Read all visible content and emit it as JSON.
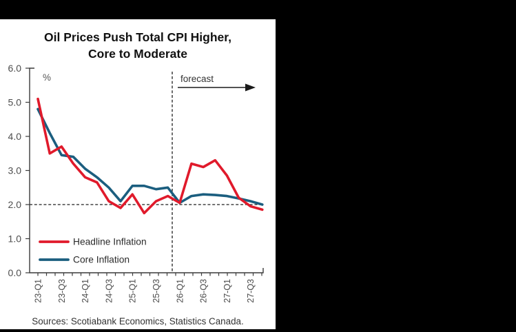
{
  "window": {
    "background_color": "#000000",
    "panel_color": "#ffffff"
  },
  "chart": {
    "title_line1": "Oil Prices Push Total CPI Higher,",
    "title_line2": "Core to Moderate",
    "unit_label": "%",
    "forecast_label": "forecast",
    "source": "Sources: Scotiabank Economics, Statistics Canada.",
    "legend": [
      {
        "label": "Headline Inflation",
        "color": "#e01a2b"
      },
      {
        "label": "Core Inflation",
        "color": "#1b5e7f"
      }
    ]
  },
  "chart_data": {
    "type": "line",
    "title": "Oil Prices Push Total CPI Higher, Core to Moderate",
    "ylabel": "%",
    "ylim": [
      0.0,
      6.0
    ],
    "ytick_labels": [
      "0.0",
      "1.0",
      "2.0",
      "3.0",
      "4.0",
      "5.0",
      "6.0"
    ],
    "x": [
      "23-Q1",
      "23-Q2",
      "23-Q3",
      "23-Q4",
      "24-Q1",
      "24-Q2",
      "24-Q3",
      "24-Q4",
      "25-Q1",
      "25-Q2",
      "25-Q3",
      "25-Q4",
      "26-Q1",
      "26-Q2",
      "26-Q3",
      "26-Q4",
      "27-Q1",
      "27-Q2",
      "27-Q3",
      "27-Q4"
    ],
    "x_tick_labels": [
      "23-Q1",
      "23-Q3",
      "24-Q1",
      "24-Q3",
      "25-Q1",
      "25-Q3",
      "26-Q1",
      "26-Q3",
      "27-Q1",
      "27-Q3"
    ],
    "series": [
      {
        "name": "Core Inflation",
        "color": "#1b5e7f",
        "values": [
          4.8,
          4.1,
          3.45,
          3.4,
          3.05,
          2.8,
          2.5,
          2.1,
          2.55,
          2.55,
          2.45,
          2.5,
          2.05,
          2.25,
          2.3,
          2.28,
          2.25,
          2.18,
          2.1,
          2.0
        ]
      },
      {
        "name": "Headline Inflation",
        "color": "#e01a2b",
        "values": [
          5.1,
          3.5,
          3.7,
          3.2,
          2.8,
          2.65,
          2.1,
          1.9,
          2.3,
          1.75,
          2.1,
          2.25,
          2.05,
          3.2,
          3.1,
          3.3,
          2.85,
          2.2,
          1.95,
          1.85
        ]
      }
    ],
    "reference_lines": {
      "horizontal_value": 2.0,
      "vertical_forecast_boundary_after": "25-Q4"
    },
    "forecast_start": "26-Q1",
    "legend_position": "lower-left",
    "grid": false
  }
}
